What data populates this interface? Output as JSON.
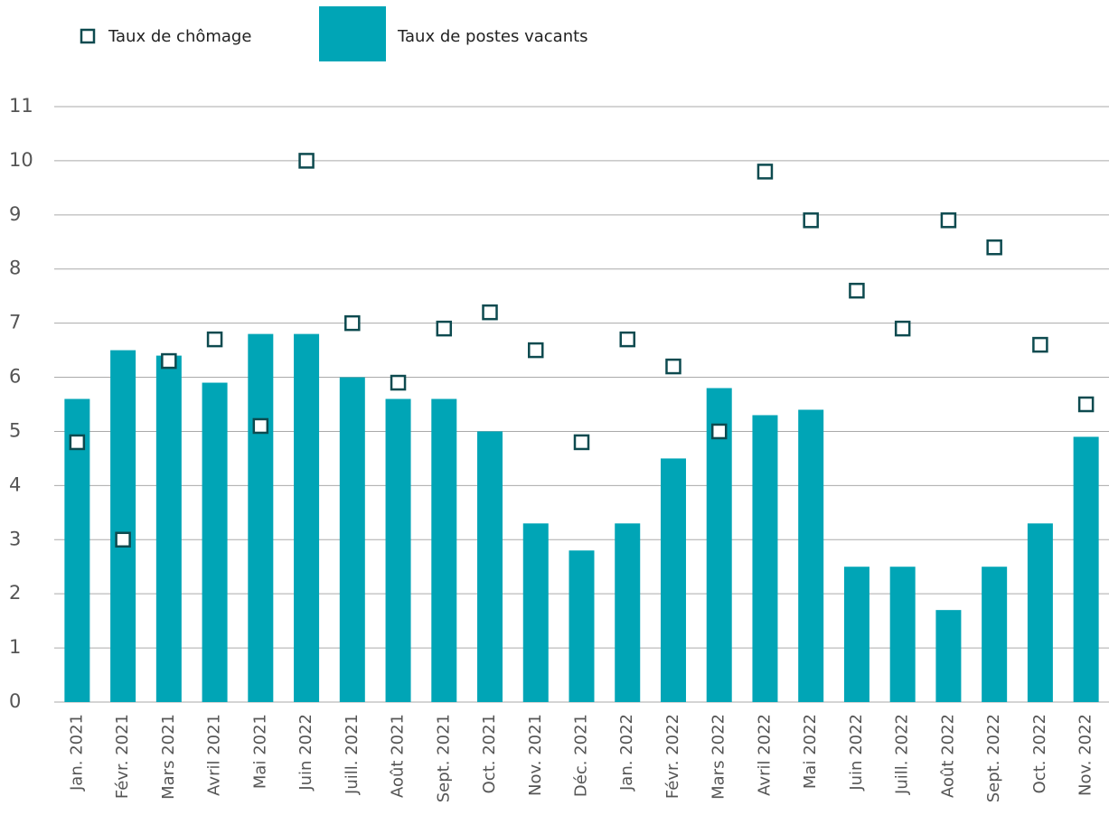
{
  "chart_data": {
    "type": "bar",
    "categories": [
      "Jan. 2021",
      "Févr. 2021",
      "Mars 2021",
      "Avril 2021",
      "Mai 2021",
      "Juin 2022",
      "Juill. 2021",
      "Août 2021",
      "Sept. 2021",
      "Oct. 2021",
      "Nov. 2021",
      "Déc. 2021",
      "Jan. 2022",
      "Févr. 2022",
      "Mars 2022",
      "Avril 2022",
      "Mai 2022",
      "Juin 2022",
      "Juill. 2022",
      "Août 2022",
      "Sept. 2022",
      "Oct. 2022",
      "Nov. 2022"
    ],
    "series": [
      {
        "name": "Taux de chômage",
        "type": "scatter",
        "color": "#0d4a4f",
        "values": [
          4.8,
          3.0,
          6.3,
          6.7,
          5.1,
          10.0,
          7.0,
          5.9,
          6.9,
          7.2,
          6.5,
          4.8,
          6.7,
          6.2,
          5.0,
          9.8,
          8.9,
          7.6,
          6.9,
          8.9,
          8.4,
          6.6,
          5.5
        ]
      },
      {
        "name": "Taux de postes vacants",
        "type": "bar",
        "color": "#00a5b6",
        "values": [
          5.6,
          6.5,
          6.4,
          5.9,
          6.8,
          6.8,
          6.0,
          5.6,
          5.6,
          5.0,
          3.3,
          2.8,
          3.3,
          4.5,
          5.8,
          5.3,
          5.4,
          2.5,
          2.5,
          1.7,
          2.5,
          3.3,
          4.9
        ]
      }
    ],
    "ylim": [
      0,
      11
    ],
    "yticks": [
      0,
      1,
      2,
      3,
      4,
      5,
      6,
      7,
      8,
      9,
      10,
      11
    ],
    "grid": true,
    "legend": "top"
  }
}
